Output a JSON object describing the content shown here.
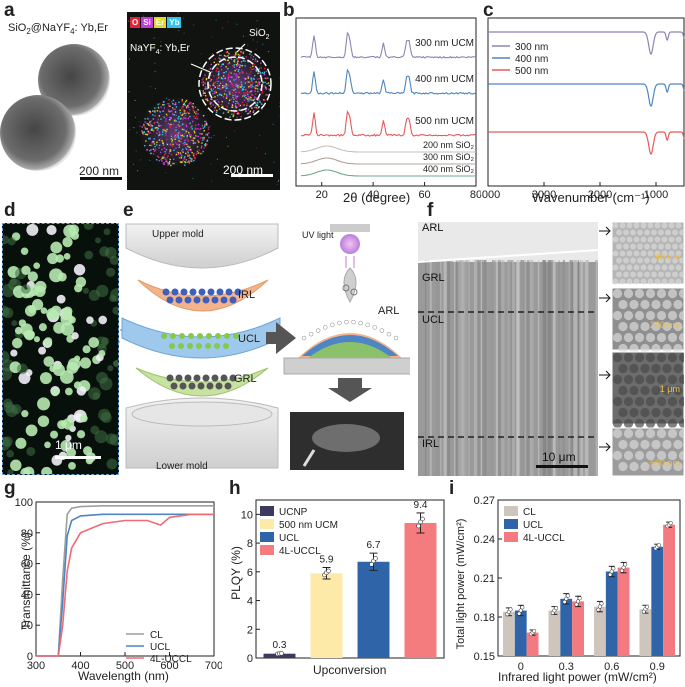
{
  "panels": {
    "a": {
      "label": "a",
      "title_base": "SiO",
      "title_sub2": "2",
      "title_mid": "@NaYF",
      "title_sub4": "4",
      "title_end": ": Yb,Er",
      "scale_left": "200 nm",
      "scale_right": "200 nm",
      "legend": [
        "O",
        "Si",
        "Er",
        "Yb"
      ],
      "legend_colors": [
        "#e8203a",
        "#c23be0",
        "#e0d82a",
        "#31c4e8"
      ],
      "ann_sio2_base": "SiO",
      "ann_sio2_sub": "2",
      "ann_nayf_base": "NaYF",
      "ann_nayf_sub": "4",
      "ann_nayf_end": ": Yb,Er"
    },
    "b": {
      "label": "b",
      "curve_labels": [
        "300 nm UCM",
        "400 nm UCM",
        "500 nm UCM",
        "200 nm SiO₂",
        "300 nm SiO₂",
        "400 nm SiO₂"
      ],
      "xticks": [
        "20",
        "40",
        "60",
        "80"
      ],
      "xlabel": "2θ  (degree)",
      "colors": [
        "#8b85b8",
        "#4d86c2",
        "#e8595a",
        "#c7c2b7",
        "#b0a39a",
        "#72a88e"
      ]
    },
    "c": {
      "label": "c",
      "legend": [
        "300 nm",
        "400 nm",
        "500 nm"
      ],
      "colors": [
        "#8b85b8",
        "#4d86c2",
        "#e8595a"
      ],
      "xticks": [
        "4000",
        "3000",
        "2000",
        "1000"
      ],
      "xlabel": "Wavenumber (cm⁻¹)"
    },
    "d": {
      "label": "d",
      "scale": "1 μm"
    },
    "e": {
      "label": "e",
      "upper_mold": "Upper mold",
      "lower_mold": "Lower mold",
      "layers": [
        "IRL",
        "UCL",
        "GRL"
      ],
      "uv_light": "UV light",
      "arl": "ARL"
    },
    "f": {
      "label": "f",
      "layers": [
        "ARL",
        "GRL",
        "UCL",
        "IRL"
      ],
      "main_scale": "10 μm",
      "inset_scales": [
        "40 nm",
        "200 nm",
        "1 μm",
        "500 nm"
      ]
    },
    "g": {
      "label": "g",
      "ylabel": "Transmittance (%)",
      "xlabel": "Wavelength (nm)",
      "yticks": [
        "0",
        "20",
        "40",
        "60",
        "80",
        "100"
      ],
      "xticks": [
        "300",
        "400",
        "500",
        "600",
        "700"
      ],
      "legend": [
        "CL",
        "UCL",
        "4L-UCCL"
      ],
      "colors": [
        "#9e9e9e",
        "#4d86c2",
        "#f06a72"
      ]
    },
    "h": {
      "label": "h",
      "ylabel": "PLQY (%)",
      "xlabel": "Upconversion",
      "yticks": [
        "0",
        "2",
        "4",
        "6",
        "8",
        "10"
      ],
      "legend": [
        "UCNP",
        "500 nm UCM",
        "UCL",
        "4L-UCCL"
      ]
    },
    "i": {
      "label": "i",
      "ylabel": "Total light power (mW/cm²)",
      "xlabel": "Infrared light power (mW/cm²)",
      "yticks": [
        "0.15",
        "0.18",
        "0.21",
        "0.24",
        "0.27"
      ],
      "xticks": [
        "0",
        "0.3",
        "0.6",
        "0.9"
      ],
      "legend": [
        "CL",
        "UCL",
        "4L-UCCL"
      ],
      "colors": [
        "#cec6bd",
        "#2f65a8",
        "#f27a80"
      ]
    }
  },
  "chart_data": [
    {
      "panel": "b",
      "type": "line",
      "title": "",
      "xlabel": "2θ (degree)",
      "ylabel": "",
      "xlim": [
        10,
        80
      ],
      "series": [
        {
          "name": "300 nm UCM",
          "peaks_at": [
            17,
            30,
            31,
            44,
            53,
            54
          ]
        },
        {
          "name": "400 nm UCM",
          "peaks_at": [
            17,
            30,
            31,
            44,
            53,
            54
          ]
        },
        {
          "name": "500 nm UCM",
          "peaks_at": [
            17,
            30,
            31,
            44,
            53,
            54
          ]
        },
        {
          "name": "200 nm SiO₂",
          "peaks_at": [
            22
          ]
        },
        {
          "name": "300 nm SiO₂",
          "peaks_at": [
            22
          ]
        },
        {
          "name": "400 nm SiO₂",
          "peaks_at": [
            22
          ]
        }
      ]
    },
    {
      "panel": "c",
      "type": "line",
      "xlabel": "Wavenumber (cm⁻¹)",
      "xlim": [
        4000,
        500
      ],
      "series": [
        {
          "name": "300 nm",
          "dips_at": [
            1090,
            800,
            470
          ]
        },
        {
          "name": "400 nm",
          "dips_at": [
            1090,
            800,
            470
          ]
        },
        {
          "name": "500 nm",
          "dips_at": [
            1090,
            800,
            470
          ]
        }
      ]
    },
    {
      "panel": "g",
      "type": "line",
      "xlabel": "Wavelength (nm)",
      "ylabel": "Transmittance (%)",
      "xlim": [
        300,
        700
      ],
      "ylim": [
        0,
        100
      ],
      "x": [
        300,
        340,
        350,
        360,
        370,
        380,
        400,
        450,
        500,
        550,
        580,
        600,
        650,
        700
      ],
      "series": [
        {
          "name": "CL",
          "values": [
            0,
            0,
            0,
            50,
            92,
            96,
            97,
            97.5,
            97.5,
            97.5,
            97.5,
            97.5,
            97.5,
            97.5
          ]
        },
        {
          "name": "UCL",
          "values": [
            0,
            0,
            0,
            35,
            78,
            88,
            91,
            92,
            92,
            92,
            92,
            92,
            92,
            92
          ]
        },
        {
          "name": "4L-UCCL",
          "values": [
            0,
            0,
            0,
            20,
            55,
            70,
            80,
            86,
            88,
            88,
            85,
            90,
            92,
            92
          ]
        }
      ]
    },
    {
      "panel": "h",
      "type": "bar",
      "xlabel": "Upconversion",
      "ylabel": "PLQY (%)",
      "ylim": [
        0,
        11
      ],
      "categories": [
        "UCNP",
        "500 nm UCM",
        "UCL",
        "4L-UCCL"
      ],
      "values": [
        0.3,
        5.9,
        6.7,
        9.4
      ],
      "errors": [
        0.05,
        0.4,
        0.6,
        0.7
      ],
      "colors": [
        "#3b3a5e",
        "#fdeaa8",
        "#2f65a8",
        "#f47b7e"
      ]
    },
    {
      "panel": "i",
      "type": "bar",
      "xlabel": "Infrared light power (mW/cm²)",
      "ylabel": "Total light power (mW/cm²)",
      "ylim": [
        0.15,
        0.27
      ],
      "categories": [
        "0",
        "0.3",
        "0.6",
        "0.9"
      ],
      "series": [
        {
          "name": "CL",
          "values": [
            0.184,
            0.185,
            0.188,
            0.186
          ],
          "errors": [
            0.003,
            0.003,
            0.004,
            0.003
          ]
        },
        {
          "name": "UCL",
          "values": [
            0.185,
            0.194,
            0.215,
            0.234
          ],
          "errors": [
            0.004,
            0.004,
            0.004,
            0.002
          ]
        },
        {
          "name": "4L-UCCL",
          "values": [
            0.168,
            0.192,
            0.218,
            0.251
          ],
          "errors": [
            0.002,
            0.004,
            0.004,
            0.002
          ]
        }
      ]
    }
  ]
}
